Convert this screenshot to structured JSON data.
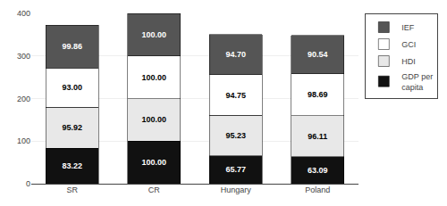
{
  "chart_data": {
    "type": "bar",
    "stacked": true,
    "categories": [
      "SR",
      "CR",
      "Hungary",
      "Poland"
    ],
    "series": [
      {
        "name": "GDP per\ncapita",
        "color": "#111111",
        "values": [
          83.22,
          100.0,
          65.77,
          63.09
        ],
        "value_labels": [
          "83.22",
          "100.00",
          "65.77",
          "63.09"
        ]
      },
      {
        "name": "HDI",
        "color": "#e8e8e8",
        "values": [
          95.92,
          100.0,
          95.23,
          96.11
        ],
        "value_labels": [
          "95.92",
          "100.00",
          "95.23",
          "96.11"
        ]
      },
      {
        "name": "GCI",
        "color": "#ffffff",
        "values": [
          93.0,
          100.0,
          94.75,
          98.69
        ],
        "value_labels": [
          "93.00",
          "100.00",
          "94.75",
          "98.69"
        ]
      },
      {
        "name": "IEF",
        "color": "#555555",
        "values": [
          99.86,
          100.0,
          94.7,
          90.54
        ],
        "value_labels": [
          "99.86",
          "100.00",
          "94.70",
          "90.54"
        ]
      }
    ],
    "ylim": [
      0,
      400
    ],
    "yticks": [
      0,
      100,
      200,
      300,
      400
    ],
    "grid": true,
    "data_labels": true,
    "legend": "right"
  }
}
